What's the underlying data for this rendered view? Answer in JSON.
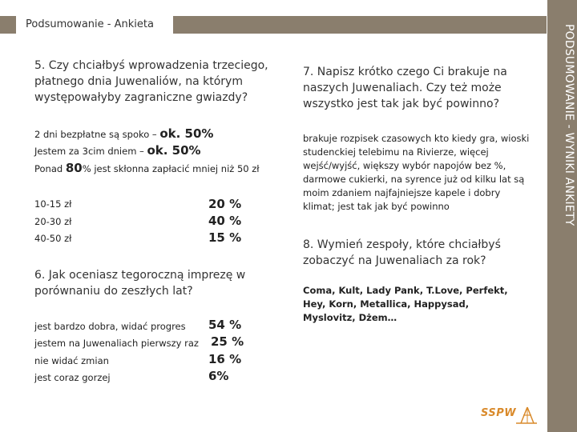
{
  "header": {
    "title": "Podsumowanie - Ankieta"
  },
  "side": {
    "label": "PODSUMOWANIE - WYNIKI ANKIETY"
  },
  "q5": {
    "title": "5. Czy chciałbyś wprowadzenia trzeciego, płatnego dnia Juwenaliów, na którym występowałyby zagraniczne gwiazdy?",
    "line1_text": "2 dni bezpłatne są spoko – ",
    "line1_value": "ok. 50%",
    "line2_text": "Jestem za 3cim dniem – ",
    "line2_value": "ok. 50%",
    "line3_pre": "Ponad ",
    "line3_value": "80",
    "line3_post": "% jest skłonna zapłacić mniej niż 50 zł",
    "prices": [
      {
        "label": "10-15 zł",
        "value": "20 %"
      },
      {
        "label": "20-30 zł",
        "value": "40 %"
      },
      {
        "label": "40-50 zł",
        "value": "15 %"
      }
    ]
  },
  "q6": {
    "title": "6. Jak oceniasz tegoroczną imprezę w porównaniu do zeszłych lat?",
    "rows": [
      {
        "label": "jest bardzo dobra, widać progres",
        "value": "54 %"
      },
      {
        "label": "jestem na Juwenaliach pierwszy raz",
        "value": "25 %"
      },
      {
        "label": "nie widać zmian",
        "value": "16 %"
      },
      {
        "label": "jest coraz gorzej",
        "value": "6%"
      }
    ]
  },
  "q7": {
    "title": "7. Napisz krótko czego Ci brakuje na naszych Juwenaliach. Czy też może wszystko jest tak jak być powinno?",
    "answer": "brakuje rozpisek czasowych kto kiedy gra, wioski studenckiej telebimu na Rivierze, więcej wejść/wyjść, większy wybór napojów bez %, darmowe cukierki, na syrence już od kilku lat są moim zdaniem najfajniejsze kapele i dobry klimat; jest tak jak być powinno"
  },
  "q8": {
    "title": "8. Wymień zespoły, które chciałbyś zobaczyć na Juwenaliach za rok?",
    "answer": "Coma, Kult, Lady Pank, T.Love, Perfekt, Hey, Korn, Metallica, Happysad, Myslovitz, Dżem…"
  },
  "logo": {
    "text": "SSPW",
    "color": "#d98a2b"
  },
  "colors": {
    "frame": "#8a7e6d",
    "accent": "#d98a2b"
  }
}
